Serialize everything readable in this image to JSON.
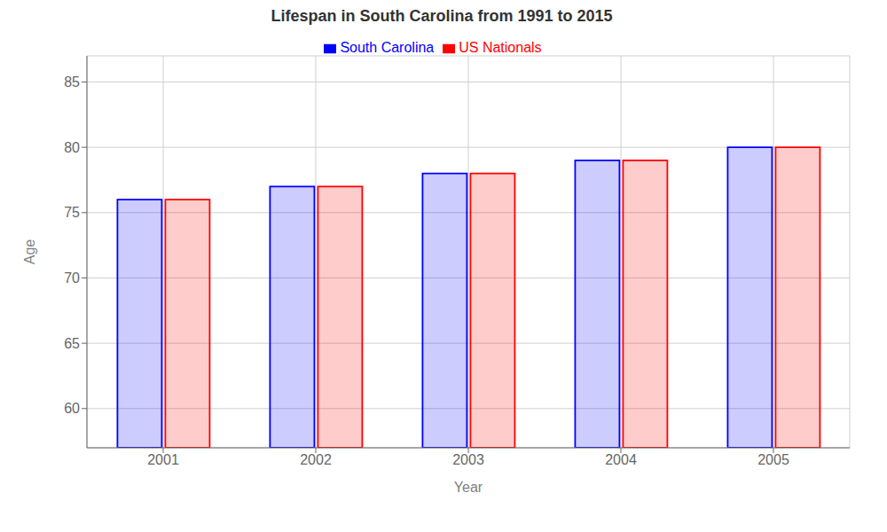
{
  "chart_data": {
    "type": "bar",
    "title": "Lifespan in South Carolina from 1991 to 2015",
    "x_label": "Year",
    "y_label": "Age",
    "categories": [
      "2001",
      "2002",
      "2003",
      "2004",
      "2005"
    ],
    "series": [
      {
        "name": "South Carolina",
        "color": "#0000ff",
        "values": [
          76.0,
          77.0,
          78.0,
          79.0,
          80.0
        ]
      },
      {
        "name": "US Nationals",
        "color": "#ff0000",
        "values": [
          76.0,
          77.0,
          78.0,
          79.0,
          80.0
        ]
      }
    ],
    "ylim": [
      57,
      87
    ],
    "yticks": [
      60,
      65,
      70,
      75,
      80,
      85
    ],
    "grid": true,
    "legend": "top"
  }
}
